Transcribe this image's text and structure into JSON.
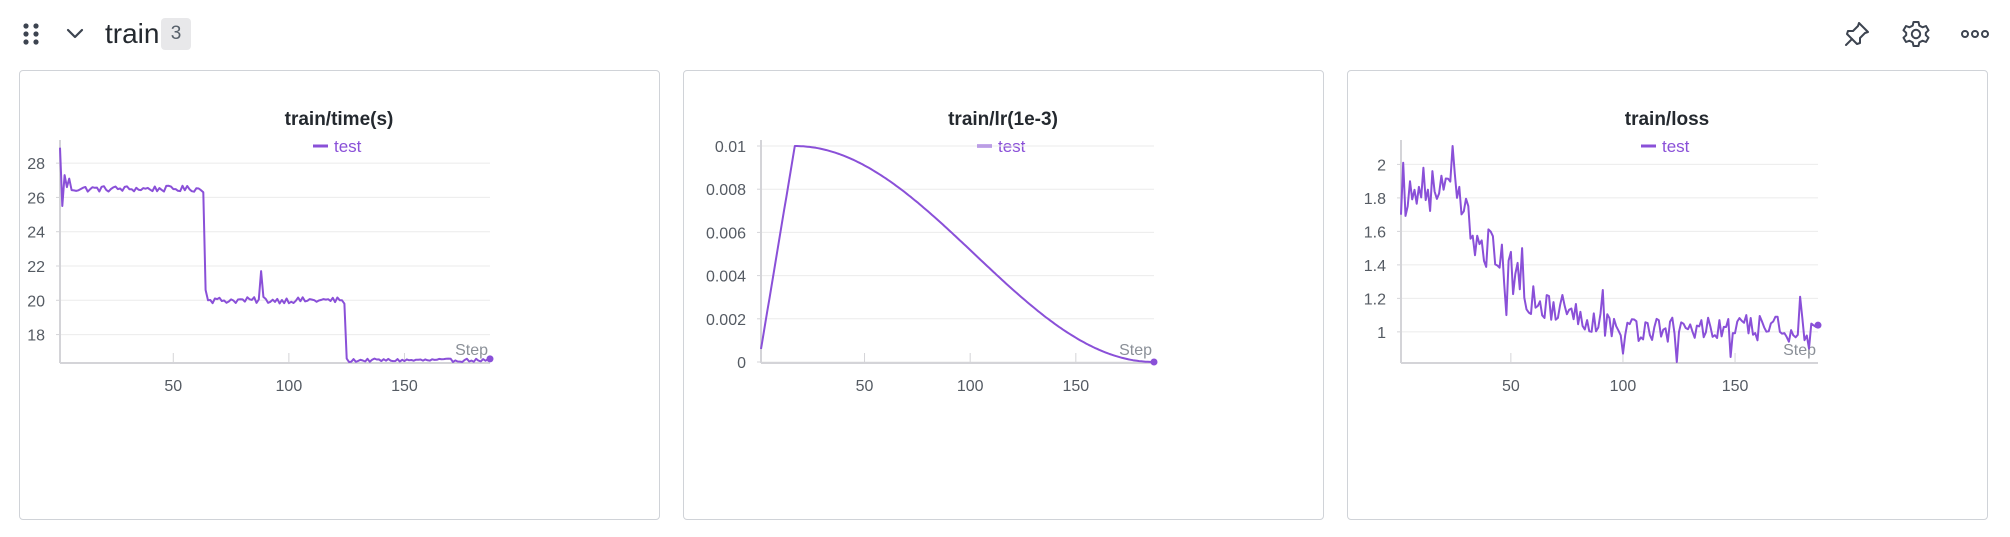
{
  "header": {
    "group_title": "train",
    "group_count": "3",
    "icons": [
      "drag-handle-icon",
      "chevron-down-icon",
      "pin-icon",
      "gear-icon",
      "more-horizontal-icon"
    ]
  },
  "colors": {
    "series": "#8a50d8",
    "grid": "#ebebeb",
    "axis": "#d4d4d8",
    "tick_text": "#555b63",
    "title_text": "#24292f"
  },
  "chart_data": [
    {
      "type": "line",
      "title": "train/time(s)",
      "legend": [
        "test"
      ],
      "legend_position": "top-center",
      "grid": true,
      "xlabel": "Step",
      "xlim": [
        1,
        187
      ],
      "ylim": [
        16.4,
        29
      ],
      "xticks": [
        50,
        100,
        150
      ],
      "yticks": [
        18,
        20,
        22,
        24,
        26,
        28
      ],
      "yticklabels": [
        "18",
        "20",
        "22",
        "24",
        "26",
        "28"
      ],
      "series": [
        {
          "name": "test",
          "segments": [
            {
              "x0": 1,
              "x1": 62,
              "base": 26.5,
              "amp": 0.18
            },
            {
              "x0": 63,
              "x1": 124,
              "base": 20.0,
              "amp": 0.18
            },
            {
              "x0": 125,
              "x1": 187,
              "base": 16.5,
              "amp": 0.1
            }
          ],
          "spikes": [
            [
              1,
              28.9
            ],
            [
              2,
              25.5
            ],
            [
              3,
              27.3
            ],
            [
              4,
              26.6
            ],
            [
              5,
              27.1
            ],
            [
              63,
              26.3
            ],
            [
              64,
              20.6
            ],
            [
              65,
              20.0
            ],
            [
              88,
              21.7
            ],
            [
              89,
              20.2
            ],
            [
              123,
              20.0
            ],
            [
              124,
              19.8
            ],
            [
              125,
              16.6
            ],
            [
              126,
              16.4
            ]
          ]
        }
      ]
    },
    {
      "type": "line",
      "title": "train/lr(1e-3)",
      "legend": [
        "test"
      ],
      "legend_position": "top-center",
      "grid": true,
      "xlabel": "Step",
      "xlim": [
        1,
        187
      ],
      "ylim": [
        0,
        0.01
      ],
      "xticks": [
        50,
        100,
        150
      ],
      "yticks": [
        0,
        0.002,
        0.004,
        0.006,
        0.008,
        0.01
      ],
      "yticklabels": [
        "0",
        "0.002",
        "0.004",
        "0.006",
        "0.008",
        "0.01"
      ],
      "series": [
        {
          "name": "test",
          "schedule": "linear-warmup-cosine-decay",
          "warmup_end_step": 17,
          "peak": 0.01,
          "start": 0.0006,
          "end": 0
        }
      ]
    },
    {
      "type": "line",
      "title": "train/loss",
      "legend": [
        "test"
      ],
      "legend_position": "top-center",
      "grid": true,
      "xlabel": "Step",
      "xlim": [
        1,
        187
      ],
      "ylim": [
        0.82,
        2.11
      ],
      "xticks": [
        50,
        100,
        150
      ],
      "yticks": [
        1,
        1.2,
        1.4,
        1.6,
        1.8,
        2
      ],
      "yticklabels": [
        "1",
        "1.2",
        "1.4",
        "1.6",
        "1.8",
        "2"
      ],
      "series": [
        {
          "name": "test",
          "anchors": [
            [
              1,
              1.75
            ],
            [
              10,
              1.85
            ],
            [
              24,
              1.85
            ],
            [
              28,
              1.75
            ],
            [
              32,
              1.6
            ],
            [
              40,
              1.5
            ],
            [
              50,
              1.35
            ],
            [
              60,
              1.2
            ],
            [
              70,
              1.12
            ],
            [
              80,
              1.1
            ],
            [
              100,
              1.02
            ],
            [
              187,
              1.02
            ]
          ],
          "spikes": [
            [
              1,
              1.7
            ],
            [
              2,
              2.01
            ],
            [
              4,
              1.75
            ],
            [
              5,
              1.9
            ],
            [
              11,
              1.98
            ],
            [
              24,
              2.11
            ],
            [
              48,
              1.1
            ],
            [
              55,
              1.5
            ],
            [
              73,
              1.22
            ],
            [
              91,
              1.25
            ],
            [
              100,
              0.87
            ],
            [
              124,
              0.82
            ],
            [
              148,
              0.85
            ],
            [
              179,
              1.21
            ],
            [
              183,
              0.9
            ],
            [
              186,
              1.03
            ],
            [
              187,
              1.04
            ]
          ]
        }
      ]
    }
  ]
}
